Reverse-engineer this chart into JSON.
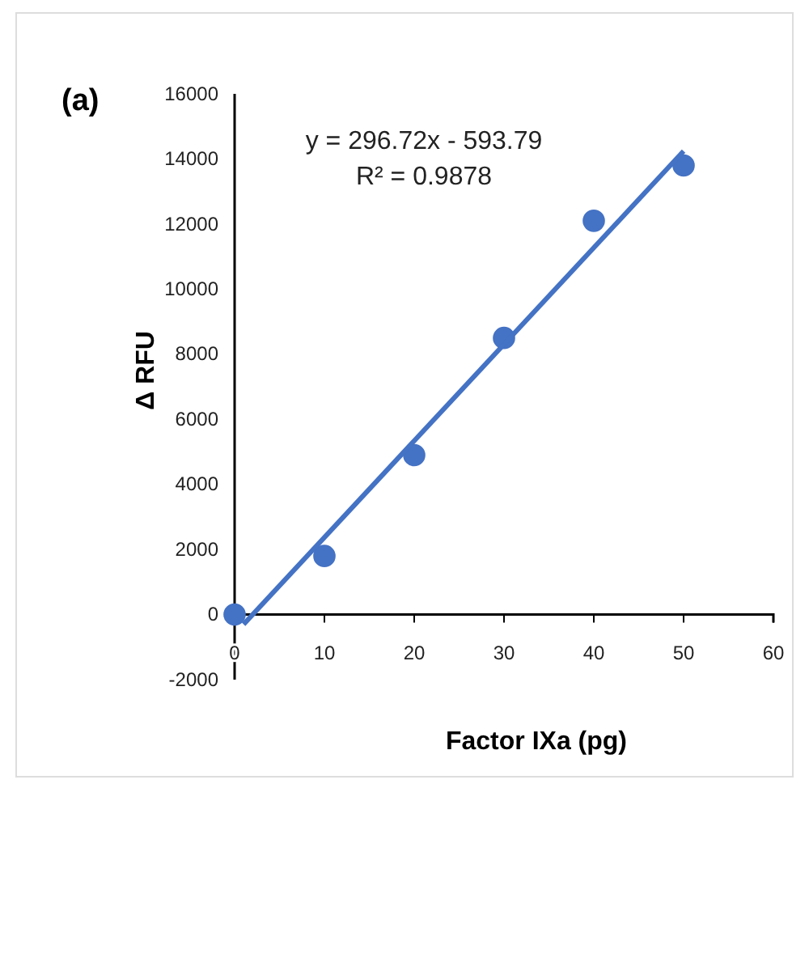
{
  "chart_data": {
    "type": "scatter",
    "title": "(a)",
    "xlabel": "Factor IXa (pg)",
    "ylabel": "Δ RFU",
    "annotations": [
      "y = 296.72x - 593.79",
      "R² = 0.9878"
    ],
    "x": [
      0,
      10,
      20,
      30,
      40,
      50
    ],
    "series": [
      {
        "color": "#4472c4",
        "values": [
          0,
          1800,
          4900,
          8500,
          12100,
          13800
        ],
        "marker": "circle"
      },
      {
        "type": "line",
        "color": "#4472c4",
        "x": [
          1,
          50
        ],
        "values": [
          -300,
          14240
        ],
        "line_style": "solid"
      }
    ],
    "xlim": [
      0,
      60
    ],
    "xticks": [
      0,
      10,
      20,
      30,
      40,
      50,
      60
    ],
    "ylim": [
      -2000,
      16000
    ],
    "yticks": [
      -2000,
      0,
      2000,
      4000,
      6000,
      8000,
      10000,
      12000,
      14000,
      16000
    ],
    "grid": false
  }
}
